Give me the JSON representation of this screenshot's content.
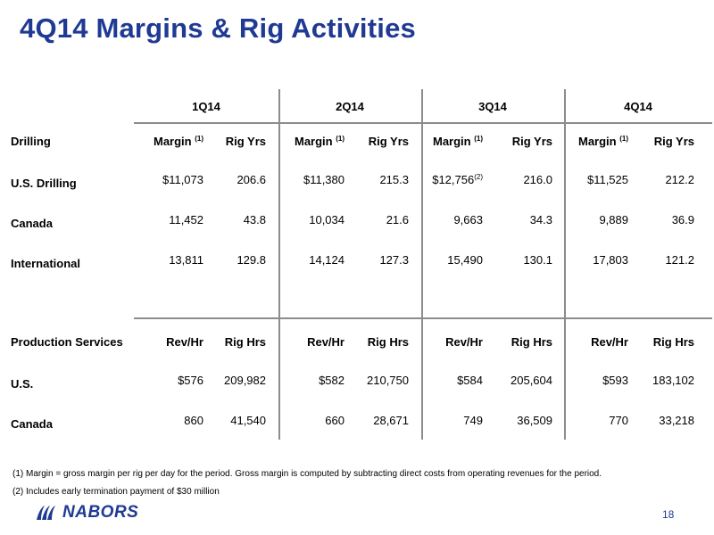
{
  "title": "4Q14 Margins & Rig Activities",
  "quarters": [
    "1Q14",
    "2Q14",
    "3Q14",
    "4Q14"
  ],
  "drilling": {
    "section_label": "Drilling",
    "col_a": "Margin",
    "col_a_sup": "(1)",
    "col_b": "Rig Yrs",
    "rows": [
      {
        "label": "U.S. Drilling",
        "values": [
          {
            "a": "$11,073",
            "b": "206.6"
          },
          {
            "a": "$11,380",
            "b": "215.3"
          },
          {
            "a": "$12,756",
            "a_sup": "(2)",
            "b": "216.0"
          },
          {
            "a": "$11,525",
            "b": "212.2"
          }
        ]
      },
      {
        "label": "Canada",
        "values": [
          {
            "a": "11,452",
            "b": "43.8"
          },
          {
            "a": "10,034",
            "b": "21.6"
          },
          {
            "a": "9,663",
            "b": "34.3"
          },
          {
            "a": "9,889",
            "b": "36.9"
          }
        ]
      },
      {
        "label": "International",
        "values": [
          {
            "a": "13,811",
            "b": "129.8"
          },
          {
            "a": "14,124",
            "b": "127.3"
          },
          {
            "a": "15,490",
            "b": "130.1"
          },
          {
            "a": "17,803",
            "b": "121.2"
          }
        ]
      }
    ]
  },
  "production": {
    "section_label": "Production Services",
    "col_a": "Rev/Hr",
    "col_b": "Rig Hrs",
    "rows": [
      {
        "label": "U.S.",
        "values": [
          {
            "a": "$576",
            "b": "209,982"
          },
          {
            "a": "$582",
            "b": "210,750"
          },
          {
            "a": "$584",
            "b": "205,604"
          },
          {
            "a": "$593",
            "b": "183,102"
          }
        ]
      },
      {
        "label": "Canada",
        "values": [
          {
            "a": "860",
            "b": "41,540"
          },
          {
            "a": "660",
            "b": "28,671"
          },
          {
            "a": "749",
            "b": "36,509"
          },
          {
            "a": "770",
            "b": "33,218"
          }
        ]
      }
    ]
  },
  "footnotes": [
    "(1)  Margin = gross margin per rig per day for the period.  Gross margin is computed by subtracting direct costs from operating revenues for the period.",
    "(2)  Includes early termination payment of $30 million"
  ],
  "logo_text": "NABORS",
  "logo_icon": "nabors-logo-icon",
  "brand_color": "#1f3a93",
  "page_number": "18"
}
